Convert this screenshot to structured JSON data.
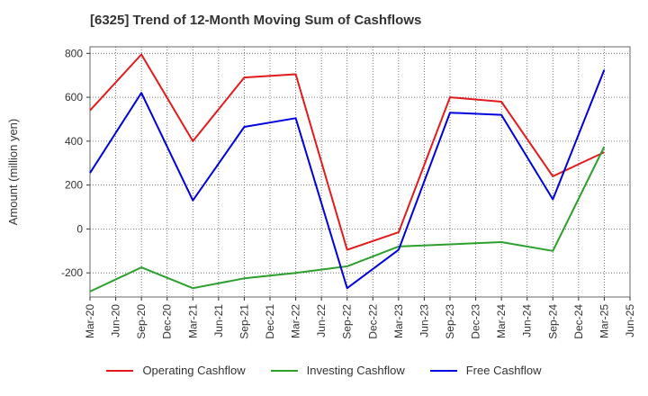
{
  "chart_data": {
    "type": "line",
    "title": "[6325]  Trend of 12-Month Moving Sum of Cashflows",
    "ylabel": "Amount (million yen)",
    "xlabel": "",
    "ylim": [
      -310,
      830
    ],
    "yticks": [
      -200,
      0,
      200,
      400,
      600,
      800
    ],
    "grid": true,
    "legend_position": "bottom",
    "categories": [
      "Mar-20",
      "Jun-20",
      "Sep-20",
      "Dec-20",
      "Mar-21",
      "Jun-21",
      "Sep-21",
      "Dec-21",
      "Mar-22",
      "Jun-22",
      "Sep-22",
      "Dec-22",
      "Mar-23",
      "Jun-23",
      "Sep-23",
      "Dec-23",
      "Mar-24",
      "Jun-24",
      "Sep-24",
      "Dec-24",
      "Mar-25",
      "Jun-25"
    ],
    "series": [
      {
        "name": "Operating Cashflow",
        "color": "#e31a1c",
        "values": [
          540,
          null,
          795,
          null,
          400,
          null,
          690,
          null,
          705,
          null,
          -95,
          null,
          -15,
          null,
          600,
          null,
          580,
          null,
          240,
          null,
          350,
          null
        ]
      },
      {
        "name": "Investing Cashflow",
        "color": "#2ca02c",
        "values": [
          -285,
          null,
          -175,
          null,
          -270,
          null,
          -225,
          null,
          -200,
          null,
          -170,
          null,
          -80,
          null,
          -70,
          null,
          -60,
          null,
          -100,
          null,
          375,
          null
        ]
      },
      {
        "name": "Free Cashflow",
        "color": "#0000dd",
        "values": [
          255,
          null,
          620,
          null,
          130,
          null,
          465,
          null,
          505,
          null,
          -270,
          null,
          -95,
          null,
          530,
          null,
          520,
          null,
          135,
          null,
          725,
          null
        ]
      }
    ]
  }
}
